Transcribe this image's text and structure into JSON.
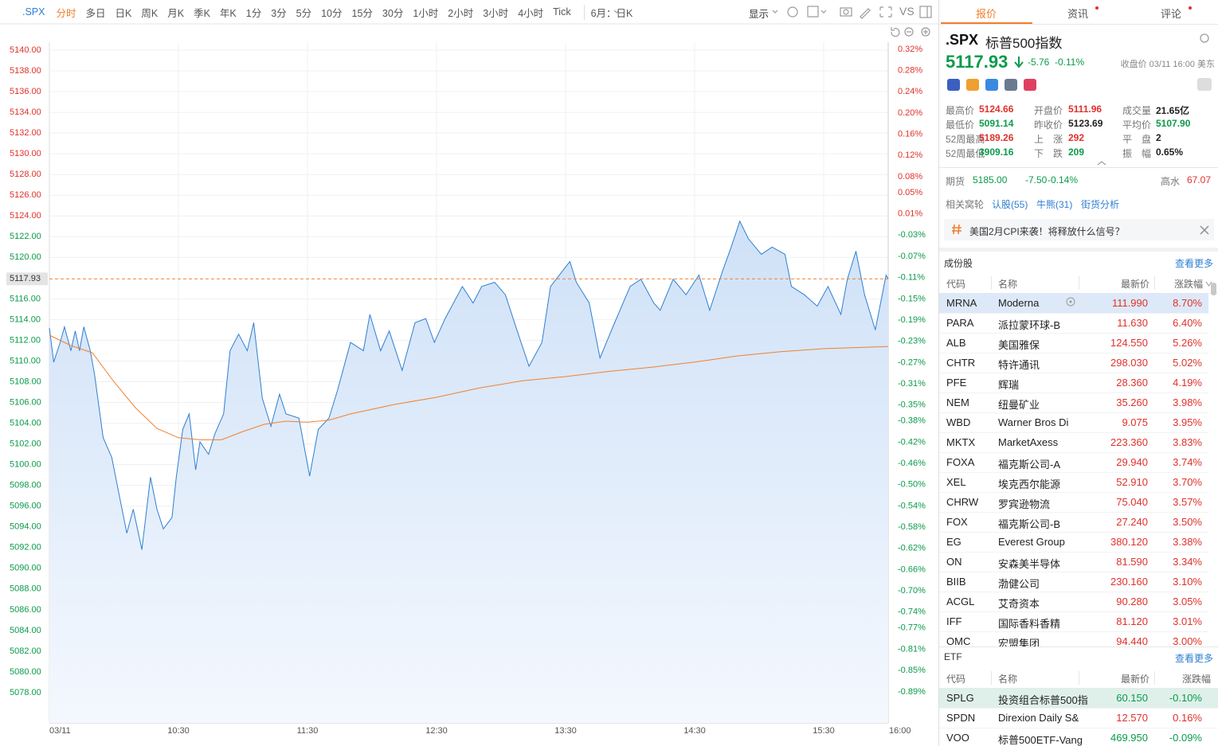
{
  "toolbar": {
    "symbol": ".SPX",
    "periods": [
      "分时",
      "多日",
      "日K",
      "周K",
      "月K",
      "季K",
      "年K",
      "1分",
      "3分",
      "5分",
      "10分",
      "15分",
      "30分",
      "1小时",
      "2小时",
      "3小时",
      "4小时",
      "Tick"
    ],
    "range": "6月：日K",
    "display": "显示",
    "compare": "VS"
  },
  "chart_data": {
    "type": "line",
    "grid": true,
    "xlim": [
      0,
      390
    ],
    "xticks": [
      {
        "value": 0,
        "label": "03/11"
      },
      {
        "value": 60,
        "label": "10:30"
      },
      {
        "value": 120,
        "label": "11:30"
      },
      {
        "value": 180,
        "label": "12:30"
      },
      {
        "value": 240,
        "label": "13:30"
      },
      {
        "value": 300,
        "label": "14:30"
      },
      {
        "value": 360,
        "label": "15:30"
      },
      {
        "value": 390,
        "label": "16:00"
      }
    ],
    "ylim": [
      5075.08,
      5140.77
    ],
    "yticks": [
      {
        "value": 5140,
        "label": "5140.00"
      },
      {
        "value": 5138,
        "label": "5138.00"
      },
      {
        "value": 5136,
        "label": "5136.00"
      },
      {
        "value": 5134,
        "label": "5134.00"
      },
      {
        "value": 5132,
        "label": "5132.00"
      },
      {
        "value": 5130,
        "label": "5130.00"
      },
      {
        "value": 5128,
        "label": "5128.00"
      },
      {
        "value": 5126,
        "label": "5126.00"
      },
      {
        "value": 5124,
        "label": "5124.00"
      },
      {
        "value": 5122,
        "label": "5122.00"
      },
      {
        "value": 5120,
        "label": "5120.00"
      },
      {
        "value": 5116,
        "label": "5116.00"
      },
      {
        "value": 5114,
        "label": "5114.00"
      },
      {
        "value": 5112,
        "label": "5112.00"
      },
      {
        "value": 5110,
        "label": "5110.00"
      },
      {
        "value": 5108,
        "label": "5108.00"
      },
      {
        "value": 5106,
        "label": "5106.00"
      },
      {
        "value": 5104,
        "label": "5104.00"
      },
      {
        "value": 5102,
        "label": "5102.00"
      },
      {
        "value": 5100,
        "label": "5100.00"
      },
      {
        "value": 5098,
        "label": "5098.00"
      },
      {
        "value": 5096,
        "label": "5096.00"
      },
      {
        "value": 5094,
        "label": "5094.00"
      },
      {
        "value": 5092,
        "label": "5092.00"
      },
      {
        "value": 5090,
        "label": "5090.00"
      },
      {
        "value": 5088,
        "label": "5088.00"
      },
      {
        "value": 5086,
        "label": "5086.00"
      },
      {
        "value": 5084,
        "label": "5084.00"
      },
      {
        "value": 5082,
        "label": "5082.00"
      },
      {
        "value": 5080,
        "label": "5080.00"
      },
      {
        "value": 5078,
        "label": "5078.00"
      }
    ],
    "y2lim": [
      -0.9487,
      0.3334
    ],
    "y2ticks": [
      {
        "value": 0.32,
        "label": "0.32%"
      },
      {
        "value": 0.28,
        "label": "0.28%"
      },
      {
        "value": 0.24,
        "label": "0.24%"
      },
      {
        "value": 0.2,
        "label": "0.20%"
      },
      {
        "value": 0.16,
        "label": "0.16%"
      },
      {
        "value": 0.12,
        "label": "0.12%"
      },
      {
        "value": 0.08,
        "label": "0.08%"
      },
      {
        "value": 0.05,
        "label": "0.05%"
      },
      {
        "value": 0.01,
        "label": "0.01%"
      },
      {
        "value": -0.03,
        "label": "-0.03%"
      },
      {
        "value": -0.07,
        "label": "-0.07%"
      },
      {
        "value": -0.11,
        "label": "-0.11%"
      },
      {
        "value": -0.15,
        "label": "-0.15%"
      },
      {
        "value": -0.19,
        "label": "-0.19%"
      },
      {
        "value": -0.23,
        "label": "-0.23%"
      },
      {
        "value": -0.27,
        "label": "-0.27%"
      },
      {
        "value": -0.31,
        "label": "-0.31%"
      },
      {
        "value": -0.35,
        "label": "-0.35%"
      },
      {
        "value": -0.38,
        "label": "-0.38%"
      },
      {
        "value": -0.42,
        "label": "-0.42%"
      },
      {
        "value": -0.46,
        "label": "-0.46%"
      },
      {
        "value": -0.5,
        "label": "-0.50%"
      },
      {
        "value": -0.54,
        "label": "-0.54%"
      },
      {
        "value": -0.58,
        "label": "-0.58%"
      },
      {
        "value": -0.62,
        "label": "-0.62%"
      },
      {
        "value": -0.66,
        "label": "-0.66%"
      },
      {
        "value": -0.7,
        "label": "-0.70%"
      },
      {
        "value": -0.74,
        "label": "-0.74%"
      },
      {
        "value": -0.77,
        "label": "-0.77%"
      },
      {
        "value": -0.81,
        "label": "-0.81%"
      },
      {
        "value": -0.85,
        "label": "-0.85%"
      },
      {
        "value": -0.89,
        "label": "-0.89%"
      }
    ],
    "reference_line": {
      "value": 5117.93,
      "color": "#f08030"
    },
    "series": [
      {
        "color": "#2f7fd1",
        "x": [
          0,
          2,
          5,
          7,
          10,
          12,
          14,
          16,
          19,
          21,
          25,
          29,
          33,
          36,
          39,
          43,
          47,
          50,
          53,
          57,
          59,
          62,
          65,
          68,
          70,
          74,
          77,
          81,
          84,
          88,
          92,
          95,
          99,
          103,
          107,
          110,
          116,
          121,
          125,
          130,
          134,
          140,
          146,
          149,
          154,
          158,
          164,
          170,
          175,
          179,
          184,
          192,
          197,
          201,
          207,
          212,
          218,
          223,
          229,
          233,
          242,
          245,
          251,
          256,
          262,
          270,
          275,
          281,
          284,
          290,
          296,
          302,
          307,
          313,
          317,
          321,
          325,
          331,
          336,
          342,
          345,
          351,
          357,
          362,
          368,
          371,
          375,
          379,
          384,
          389,
          390
        ],
        "values": [
          5113.2,
          5109.9,
          5111.8,
          5113.3,
          5111.0,
          5112.9,
          5111.0,
          5113.3,
          5111.0,
          5108.7,
          5102.6,
          5100.7,
          5096.5,
          5093.4,
          5095.7,
          5091.8,
          5098.8,
          5095.7,
          5093.8,
          5094.9,
          5098.8,
          5103.4,
          5104.9,
          5099.5,
          5102.2,
          5101.0,
          5103.0,
          5104.9,
          5111.0,
          5112.6,
          5111.0,
          5113.7,
          5106.4,
          5103.7,
          5106.8,
          5104.9,
          5104.5,
          5098.9,
          5103.4,
          5104.5,
          5107.2,
          5111.8,
          5111.0,
          5114.5,
          5111.0,
          5112.9,
          5109.1,
          5113.7,
          5114.1,
          5111.8,
          5114.1,
          5117.2,
          5115.6,
          5117.2,
          5117.6,
          5116.4,
          5112.6,
          5109.5,
          5111.8,
          5117.2,
          5119.6,
          5117.6,
          5115.6,
          5110.3,
          5113.3,
          5117.2,
          5117.9,
          5115.6,
          5114.9,
          5117.9,
          5116.4,
          5118.3,
          5114.9,
          5118.7,
          5121.0,
          5123.5,
          5121.8,
          5120.3,
          5121.0,
          5120.3,
          5117.2,
          5116.4,
          5115.3,
          5117.2,
          5114.5,
          5117.9,
          5120.6,
          5116.4,
          5113.0,
          5118.3,
          5117.93
        ]
      },
      {
        "color": "#f08030",
        "x": [
          0,
          10,
          20,
          30,
          40,
          50,
          60,
          70,
          80,
          90,
          100,
          110,
          120,
          130,
          140,
          160,
          180,
          200,
          220,
          240,
          260,
          280,
          300,
          320,
          340,
          360,
          390
        ],
        "values": [
          5112.5,
          5111.5,
          5110.8,
          5108.0,
          5105.5,
          5103.5,
          5102.6,
          5102.4,
          5102.4,
          5103.2,
          5103.9,
          5104.2,
          5104.1,
          5104.3,
          5104.9,
          5105.8,
          5106.5,
          5107.4,
          5108.1,
          5108.5,
          5109.0,
          5109.4,
          5109.9,
          5110.5,
          5110.9,
          5111.2,
          5111.4
        ]
      }
    ]
  },
  "panel": {
    "tabs": [
      "报价",
      "资讯",
      "评论"
    ],
    "symbol": ".SPX",
    "name": "标普500指数",
    "price": "5117.93",
    "change": "-5.76",
    "change_pct": "-0.11%",
    "status": "收盘价 03/11 16:00 美东",
    "stats": [
      [
        {
          "label": "最高价",
          "value": "5124.66",
          "color": "#e0312b"
        },
        {
          "label": "开盘价",
          "value": "5111.96",
          "color": "#e0312b"
        },
        {
          "label": "成交量",
          "value": "21.65亿",
          "color": "#222222"
        }
      ],
      [
        {
          "label": "最低价",
          "value": "5091.14",
          "color": "#0a9b4a"
        },
        {
          "label": "昨收价",
          "value": "5123.69",
          "color": "#222222"
        },
        {
          "label": "平均价",
          "value": "5107.90",
          "color": "#0a9b4a"
        }
      ],
      [
        {
          "label": "52周最高",
          "value": "5189.26",
          "color": "#e0312b"
        },
        {
          "label": "上　涨",
          "value": "292",
          "color": "#e0312b"
        },
        {
          "label": "平　盘",
          "value": "2",
          "color": "#222222"
        }
      ],
      [
        {
          "label": "52周最低",
          "value": "3909.16",
          "color": "#0a9b4a"
        },
        {
          "label": "下　跌",
          "value": "209",
          "color": "#0a9b4a"
        },
        {
          "label": "振　幅",
          "value": "0.65%",
          "color": "#222222"
        }
      ]
    ],
    "futures": {
      "label": "期货",
      "price": "5185.00",
      "change": "-7.50",
      "change_pct": "-0.14%",
      "premium_label": "高水",
      "premium": "67.07"
    },
    "related": {
      "label": "相关窝轮",
      "links": [
        "认股(55)",
        "牛熊(31)",
        "街货分析"
      ]
    },
    "topic": "美国2月CPI来袭！将释放什么信号？",
    "constituents": {
      "title": "成份股",
      "more": "查看更多",
      "columns": [
        "代码",
        "名称",
        "最新价",
        "涨跌幅"
      ],
      "rows": [
        [
          "MRNA",
          "Moderna",
          "111.990",
          "8.70%"
        ],
        [
          "PARA",
          "派拉蒙环球-B",
          "11.630",
          "6.40%"
        ],
        [
          "ALB",
          "美国雅保",
          "124.550",
          "5.26%"
        ],
        [
          "CHTR",
          "特许通讯",
          "298.030",
          "5.02%"
        ],
        [
          "PFE",
          "辉瑞",
          "28.360",
          "4.19%"
        ],
        [
          "NEM",
          "纽曼矿业",
          "35.260",
          "3.98%"
        ],
        [
          "WBD",
          "Warner Bros Di",
          "9.075",
          "3.95%"
        ],
        [
          "MKTX",
          "MarketAxess",
          "223.360",
          "3.83%"
        ],
        [
          "FOXA",
          "福克斯公司-A",
          "29.940",
          "3.74%"
        ],
        [
          "XEL",
          "埃克西尔能源",
          "52.910",
          "3.70%"
        ],
        [
          "CHRW",
          "罗宾逊物流",
          "75.040",
          "3.57%"
        ],
        [
          "FOX",
          "福克斯公司-B",
          "27.240",
          "3.50%"
        ],
        [
          "EG",
          "Everest Group",
          "380.120",
          "3.38%"
        ],
        [
          "ON",
          "安森美半导体",
          "81.590",
          "3.34%"
        ],
        [
          "BIIB",
          "渤健公司",
          "230.160",
          "3.10%"
        ],
        [
          "ACGL",
          "艾奇资本",
          "90.280",
          "3.05%"
        ],
        [
          "IFF",
          "国际香料香精",
          "81.120",
          "3.01%"
        ],
        [
          "OMC",
          "宏盟集团",
          "94.440",
          "3.00%"
        ]
      ]
    },
    "etf": {
      "title": "ETF",
      "more": "查看更多",
      "columns": [
        "代码",
        "名称",
        "最新价",
        "涨跌幅"
      ],
      "rows": [
        [
          "SPLG",
          "投资组合标普500指",
          "60.150",
          "-0.10%"
        ],
        [
          "SPDN",
          "Direxion Daily S&",
          "12.570",
          "0.16%"
        ],
        [
          "VOO",
          "标普500ETF-Vang",
          "469.950",
          "-0.09%"
        ]
      ]
    }
  }
}
